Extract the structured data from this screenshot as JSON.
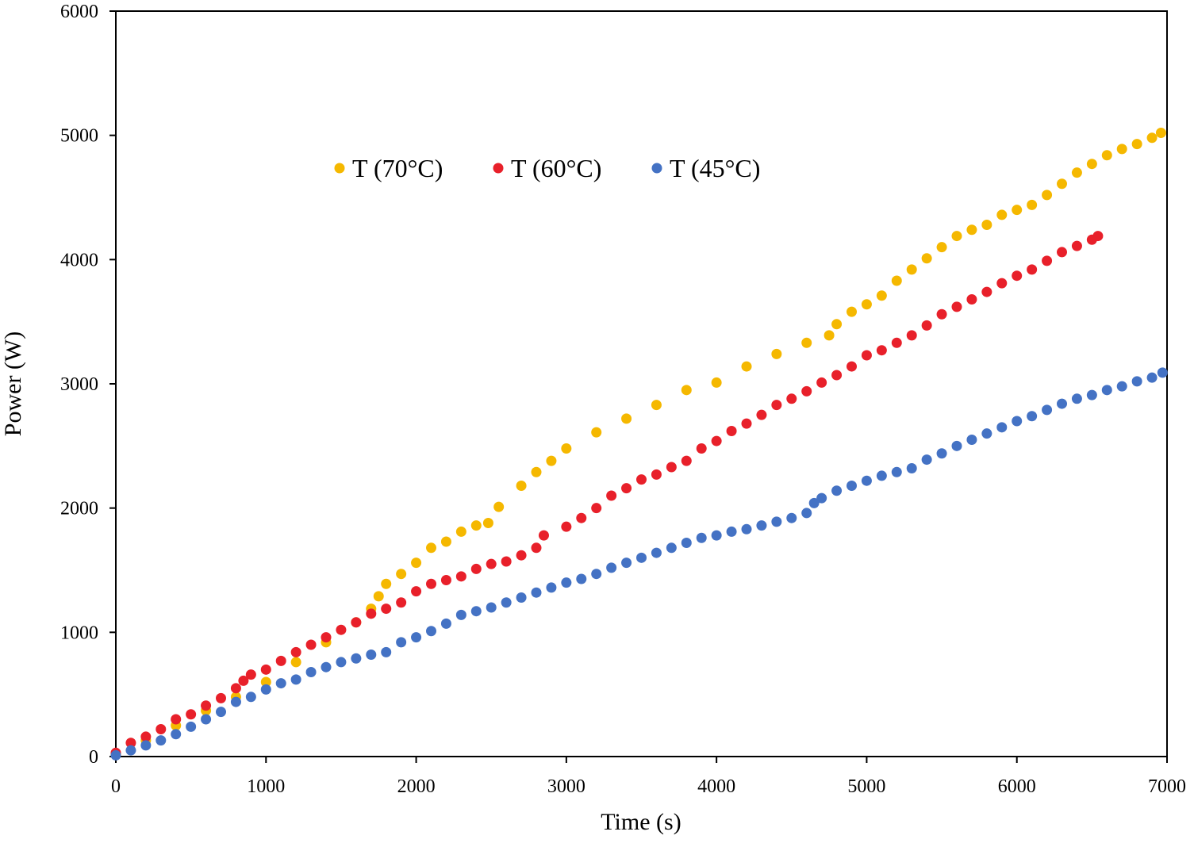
{
  "chart_data": {
    "type": "scatter",
    "xlabel": "Time (s)",
    "ylabel": "Power (W)",
    "xlim": [
      0,
      7000
    ],
    "ylim": [
      0,
      6000
    ],
    "x_ticks": [
      0,
      1000,
      2000,
      3000,
      4000,
      5000,
      6000,
      7000
    ],
    "y_ticks": [
      0,
      1000,
      2000,
      3000,
      4000,
      5000,
      6000
    ],
    "grid": false,
    "legend_position": "top-center",
    "series": [
      {
        "name": "T (70°C)",
        "color": "#f5b800",
        "points": [
          [
            0,
            20
          ],
          [
            200,
            130
          ],
          [
            400,
            250
          ],
          [
            600,
            370
          ],
          [
            800,
            480
          ],
          [
            1000,
            600
          ],
          [
            1200,
            760
          ],
          [
            1400,
            920
          ],
          [
            1600,
            1080
          ],
          [
            1700,
            1190
          ],
          [
            1750,
            1290
          ],
          [
            1800,
            1390
          ],
          [
            1900,
            1470
          ],
          [
            2000,
            1560
          ],
          [
            2100,
            1680
          ],
          [
            2200,
            1730
          ],
          [
            2300,
            1810
          ],
          [
            2400,
            1860
          ],
          [
            2480,
            1880
          ],
          [
            2550,
            2010
          ],
          [
            2700,
            2180
          ],
          [
            2800,
            2290
          ],
          [
            2900,
            2380
          ],
          [
            3000,
            2480
          ],
          [
            3200,
            2610
          ],
          [
            3400,
            2720
          ],
          [
            3600,
            2830
          ],
          [
            3800,
            2950
          ],
          [
            4000,
            3010
          ],
          [
            4200,
            3140
          ],
          [
            4400,
            3240
          ],
          [
            4600,
            3330
          ],
          [
            4750,
            3390
          ],
          [
            4800,
            3480
          ],
          [
            4900,
            3580
          ],
          [
            5000,
            3640
          ],
          [
            5100,
            3710
          ],
          [
            5200,
            3830
          ],
          [
            5300,
            3920
          ],
          [
            5400,
            4010
          ],
          [
            5500,
            4100
          ],
          [
            5600,
            4190
          ],
          [
            5700,
            4240
          ],
          [
            5800,
            4280
          ],
          [
            5900,
            4360
          ],
          [
            6000,
            4400
          ],
          [
            6100,
            4440
          ],
          [
            6200,
            4520
          ],
          [
            6300,
            4610
          ],
          [
            6400,
            4700
          ],
          [
            6500,
            4770
          ],
          [
            6600,
            4840
          ],
          [
            6700,
            4890
          ],
          [
            6800,
            4930
          ],
          [
            6900,
            4980
          ],
          [
            6960,
            5020
          ]
        ]
      },
      {
        "name": "T (60°C)",
        "color": "#e8202a",
        "points": [
          [
            0,
            30
          ],
          [
            100,
            110
          ],
          [
            200,
            160
          ],
          [
            300,
            220
          ],
          [
            400,
            300
          ],
          [
            500,
            340
          ],
          [
            600,
            410
          ],
          [
            700,
            470
          ],
          [
            800,
            550
          ],
          [
            850,
            610
          ],
          [
            900,
            660
          ],
          [
            1000,
            700
          ],
          [
            1100,
            770
          ],
          [
            1200,
            840
          ],
          [
            1300,
            900
          ],
          [
            1400,
            960
          ],
          [
            1500,
            1020
          ],
          [
            1600,
            1080
          ],
          [
            1700,
            1150
          ],
          [
            1800,
            1190
          ],
          [
            1900,
            1240
          ],
          [
            2000,
            1330
          ],
          [
            2100,
            1390
          ],
          [
            2200,
            1420
          ],
          [
            2300,
            1450
          ],
          [
            2400,
            1510
          ],
          [
            2500,
            1550
          ],
          [
            2600,
            1570
          ],
          [
            2700,
            1620
          ],
          [
            2800,
            1680
          ],
          [
            2850,
            1780
          ],
          [
            3000,
            1850
          ],
          [
            3100,
            1920
          ],
          [
            3200,
            2000
          ],
          [
            3300,
            2100
          ],
          [
            3400,
            2160
          ],
          [
            3500,
            2230
          ],
          [
            3600,
            2270
          ],
          [
            3700,
            2330
          ],
          [
            3800,
            2380
          ],
          [
            3900,
            2480
          ],
          [
            4000,
            2540
          ],
          [
            4100,
            2620
          ],
          [
            4200,
            2680
          ],
          [
            4300,
            2750
          ],
          [
            4400,
            2830
          ],
          [
            4500,
            2880
          ],
          [
            4600,
            2940
          ],
          [
            4700,
            3010
          ],
          [
            4800,
            3070
          ],
          [
            4900,
            3140
          ],
          [
            5000,
            3230
          ],
          [
            5100,
            3270
          ],
          [
            5200,
            3330
          ],
          [
            5300,
            3390
          ],
          [
            5400,
            3470
          ],
          [
            5500,
            3560
          ],
          [
            5600,
            3620
          ],
          [
            5700,
            3680
          ],
          [
            5800,
            3740
          ],
          [
            5900,
            3810
          ],
          [
            6000,
            3870
          ],
          [
            6100,
            3920
          ],
          [
            6200,
            3990
          ],
          [
            6300,
            4060
          ],
          [
            6400,
            4110
          ],
          [
            6500,
            4160
          ],
          [
            6540,
            4190
          ]
        ]
      },
      {
        "name": "T (45°C)",
        "color": "#4472c4",
        "points": [
          [
            0,
            10
          ],
          [
            100,
            50
          ],
          [
            200,
            90
          ],
          [
            300,
            130
          ],
          [
            400,
            180
          ],
          [
            500,
            240
          ],
          [
            600,
            300
          ],
          [
            700,
            360
          ],
          [
            800,
            440
          ],
          [
            900,
            480
          ],
          [
            1000,
            540
          ],
          [
            1100,
            590
          ],
          [
            1200,
            620
          ],
          [
            1300,
            680
          ],
          [
            1400,
            720
          ],
          [
            1500,
            760
          ],
          [
            1600,
            790
          ],
          [
            1700,
            820
          ],
          [
            1800,
            840
          ],
          [
            1900,
            920
          ],
          [
            2000,
            960
          ],
          [
            2100,
            1010
          ],
          [
            2200,
            1070
          ],
          [
            2300,
            1140
          ],
          [
            2400,
            1170
          ],
          [
            2500,
            1200
          ],
          [
            2600,
            1240
          ],
          [
            2700,
            1280
          ],
          [
            2800,
            1320
          ],
          [
            2900,
            1360
          ],
          [
            3000,
            1400
          ],
          [
            3100,
            1430
          ],
          [
            3200,
            1470
          ],
          [
            3300,
            1520
          ],
          [
            3400,
            1560
          ],
          [
            3500,
            1600
          ],
          [
            3600,
            1640
          ],
          [
            3700,
            1680
          ],
          [
            3800,
            1720
          ],
          [
            3900,
            1760
          ],
          [
            4000,
            1780
          ],
          [
            4100,
            1810
          ],
          [
            4200,
            1830
          ],
          [
            4300,
            1860
          ],
          [
            4400,
            1890
          ],
          [
            4500,
            1920
          ],
          [
            4600,
            1960
          ],
          [
            4650,
            2040
          ],
          [
            4700,
            2080
          ],
          [
            4800,
            2140
          ],
          [
            4900,
            2180
          ],
          [
            5000,
            2220
          ],
          [
            5100,
            2260
          ],
          [
            5200,
            2290
          ],
          [
            5300,
            2320
          ],
          [
            5400,
            2390
          ],
          [
            5500,
            2440
          ],
          [
            5600,
            2500
          ],
          [
            5700,
            2550
          ],
          [
            5800,
            2600
          ],
          [
            5900,
            2650
          ],
          [
            6000,
            2700
          ],
          [
            6100,
            2740
          ],
          [
            6200,
            2790
          ],
          [
            6300,
            2840
          ],
          [
            6400,
            2880
          ],
          [
            6500,
            2910
          ],
          [
            6600,
            2950
          ],
          [
            6700,
            2980
          ],
          [
            6800,
            3020
          ],
          [
            6900,
            3050
          ],
          [
            6970,
            3090
          ]
        ]
      }
    ]
  }
}
